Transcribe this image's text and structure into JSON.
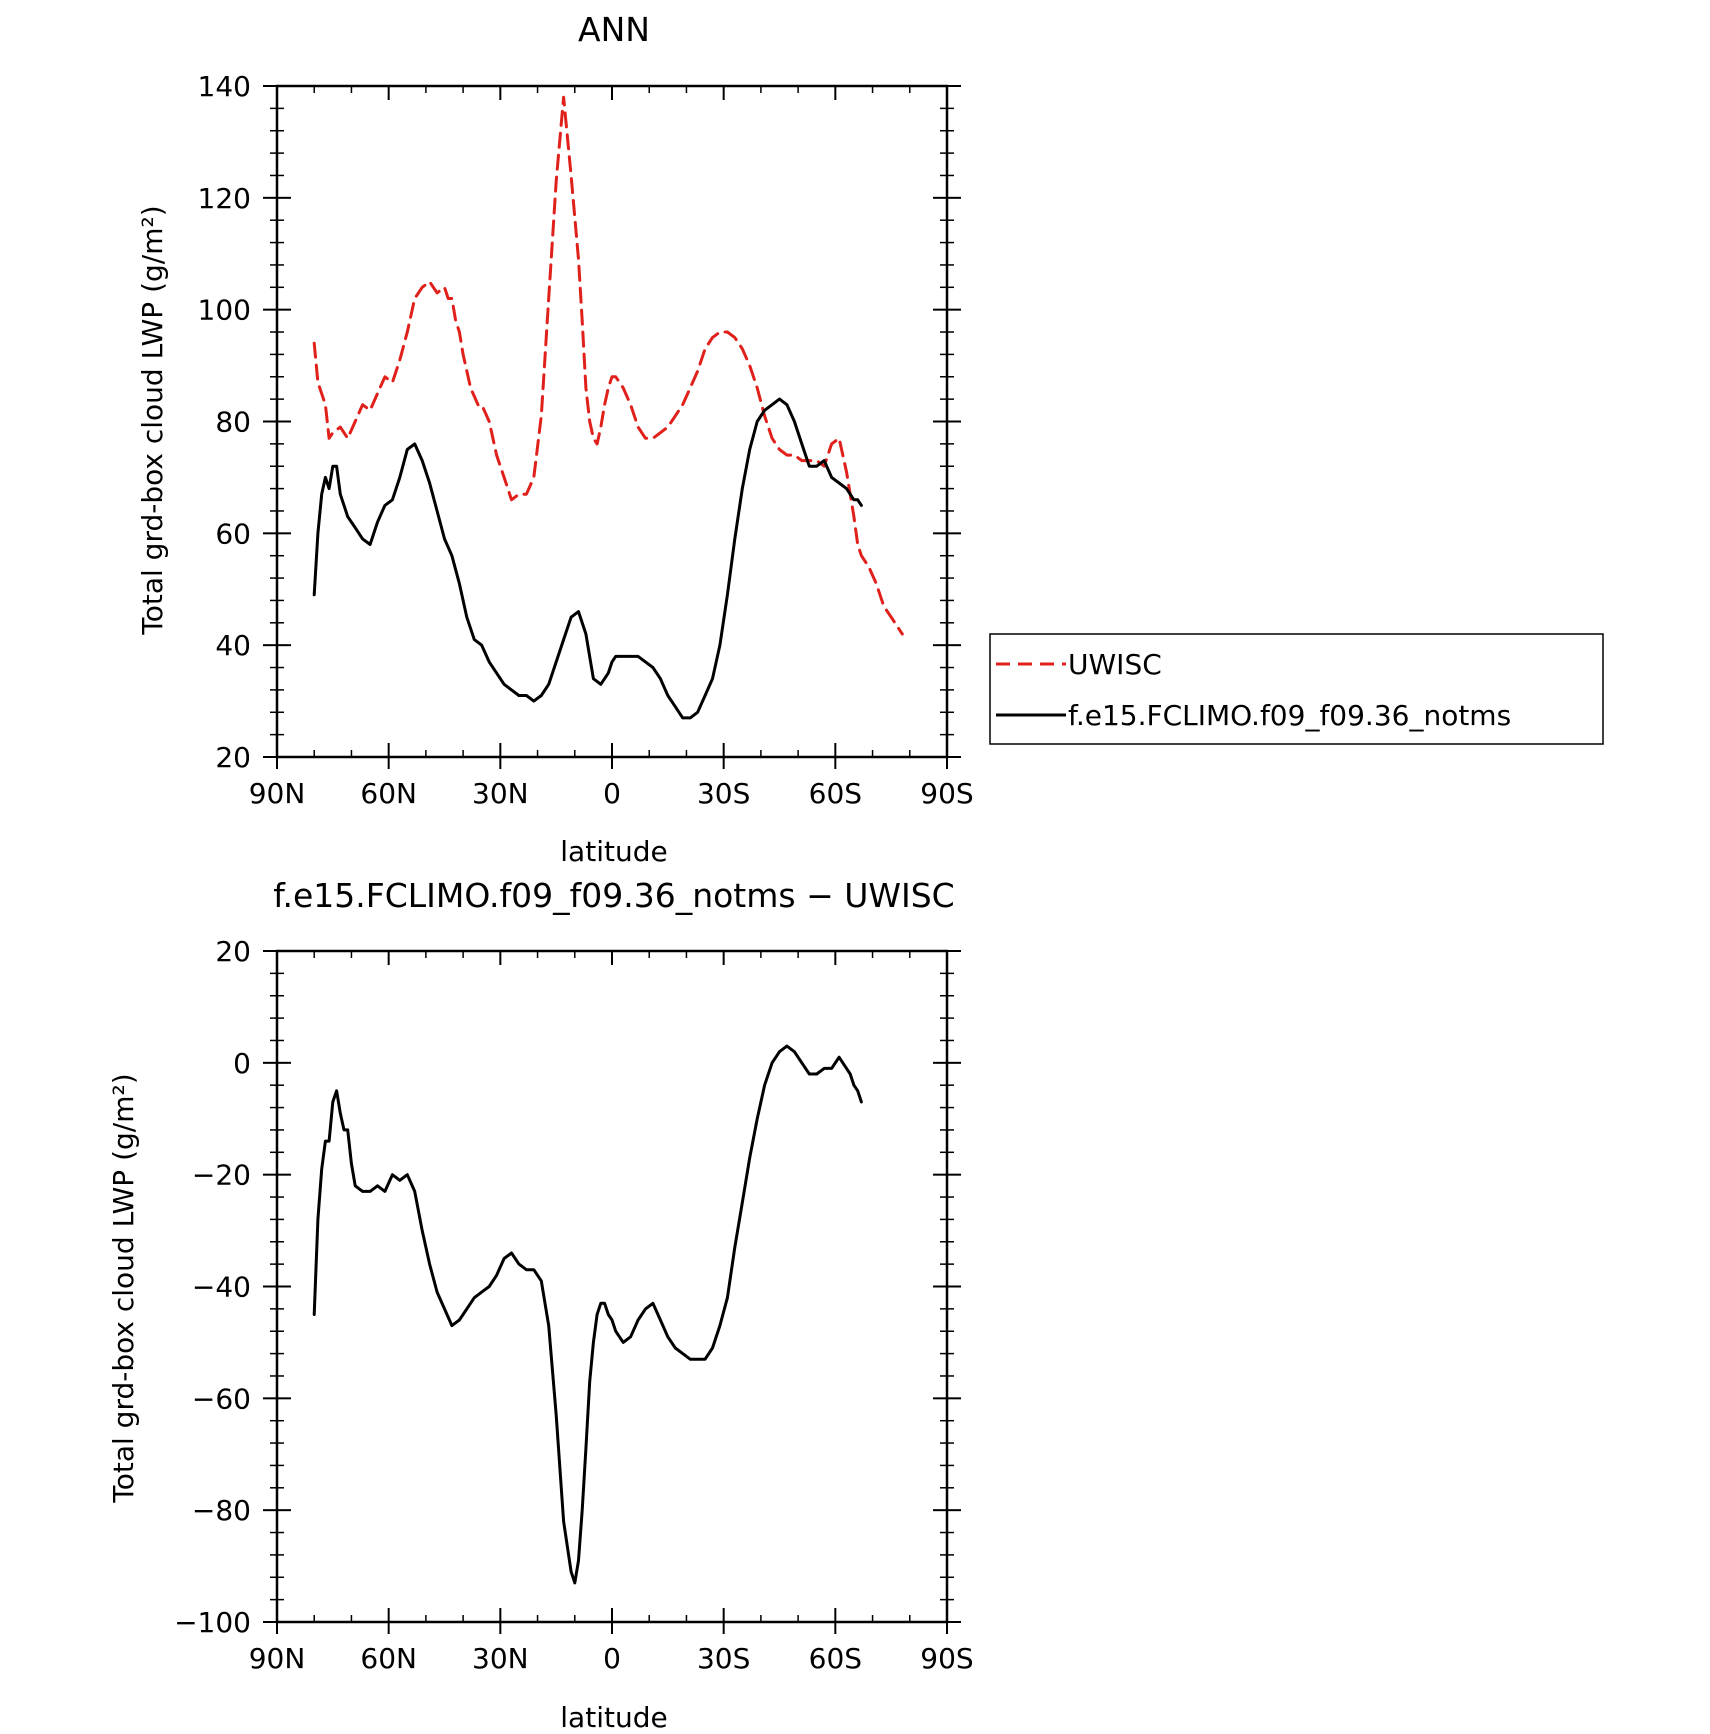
{
  "chart_data": [
    {
      "type": "line",
      "title": "ANN",
      "xlabel": "latitude",
      "ylabel": "Total grd-box cloud LWP (g/m²)",
      "xlim": [
        90,
        -90
      ],
      "ylim": [
        20,
        140
      ],
      "xticks": [
        90,
        60,
        30,
        0,
        -30,
        -60,
        -90
      ],
      "xtick_labels": [
        "90N",
        "60N",
        "30N",
        "0",
        "30S",
        "60S",
        "90S"
      ],
      "yticks": [
        20,
        40,
        60,
        80,
        100,
        120,
        140
      ],
      "ytick_labels": [
        "20",
        "40",
        "60",
        "80",
        "100",
        "120",
        "140"
      ],
      "grid": false,
      "legend_position": "right",
      "series": [
        {
          "name": "UWISC",
          "color": "#e0201b",
          "dash": "dashed",
          "x": [
            80,
            79,
            77,
            76,
            75,
            73,
            71,
            69,
            67,
            65,
            63,
            61,
            59,
            57,
            55,
            53,
            51,
            49,
            47,
            45,
            44,
            43,
            42,
            41,
            40,
            38,
            36,
            35,
            33,
            31,
            29,
            27,
            25,
            23,
            21,
            19,
            17,
            15,
            13,
            11,
            9,
            8,
            7,
            6,
            5,
            4,
            3,
            2,
            1,
            0,
            -1,
            -3,
            -5,
            -7,
            -9,
            -11,
            -13,
            -15,
            -17,
            -19,
            -21,
            -23,
            -25,
            -27,
            -29,
            -31,
            -33,
            -35,
            -37,
            -39,
            -41,
            -43,
            -45,
            -47,
            -49,
            -51,
            -53,
            -55,
            -57,
            -59,
            -61,
            -63,
            -65,
            -66,
            -67,
            -69,
            -71,
            -72,
            -73,
            -74,
            -75,
            -76,
            -77,
            -78
          ],
          "y": [
            94,
            87,
            83,
            77,
            78,
            79,
            77,
            80,
            83,
            82,
            85,
            88,
            87,
            91,
            96,
            102,
            104,
            105,
            103,
            104,
            102,
            102,
            98,
            96,
            92,
            86,
            83,
            83,
            80,
            74,
            70,
            66,
            67,
            67,
            70,
            81,
            102,
            123,
            138,
            124,
            109,
            98,
            86,
            80,
            77,
            76,
            79,
            83,
            86,
            88,
            88,
            86,
            83,
            79,
            77,
            77,
            78,
            79,
            81,
            83,
            86,
            89,
            93,
            95,
            96,
            96,
            95,
            93,
            90,
            86,
            81,
            77,
            75,
            74,
            74,
            73,
            73,
            73,
            72,
            76,
            77,
            71,
            63,
            58,
            56,
            54,
            51,
            49,
            47,
            46,
            45,
            44,
            43,
            42
          ]
        },
        {
          "name": "f.e15.FCLIMO.f09_f09.36_notms",
          "color": "#000000",
          "dash": "solid",
          "x": [
            80,
            79,
            78,
            77,
            76,
            75,
            74,
            73,
            71,
            69,
            67,
            65,
            63,
            61,
            59,
            57,
            55,
            53,
            51,
            49,
            47,
            45,
            43,
            41,
            39,
            37,
            35,
            33,
            31,
            29,
            27,
            25,
            23,
            21,
            19,
            17,
            15,
            13,
            11,
            9,
            7,
            5,
            3,
            1,
            0,
            -1,
            -3,
            -5,
            -7,
            -9,
            -11,
            -13,
            -15,
            -17,
            -19,
            -21,
            -23,
            -25,
            -27,
            -29,
            -31,
            -33,
            -35,
            -37,
            -39,
            -41,
            -43,
            -45,
            -47,
            -49,
            -51,
            -53,
            -55,
            -57,
            -59,
            -61,
            -63,
            -64,
            -65,
            -66,
            -67
          ],
          "y": [
            49,
            60,
            67,
            70,
            68,
            72,
            72,
            67,
            63,
            61,
            59,
            58,
            62,
            65,
            66,
            70,
            75,
            76,
            73,
            69,
            64,
            59,
            56,
            51,
            45,
            41,
            40,
            37,
            35,
            33,
            32,
            31,
            31,
            30,
            31,
            33,
            37,
            41,
            45,
            46,
            42,
            34,
            33,
            35,
            37,
            38,
            38,
            38,
            38,
            37,
            36,
            34,
            31,
            29,
            27,
            27,
            28,
            31,
            34,
            40,
            49,
            59,
            68,
            75,
            80,
            82,
            83,
            84,
            83,
            80,
            76,
            72,
            72,
            73,
            70,
            69,
            68,
            67,
            66,
            66,
            65
          ]
        }
      ]
    },
    {
      "type": "line",
      "title": "f.e15.FCLIMO.f09_f09.36_notms − UWISC",
      "xlabel": "latitude",
      "ylabel": "Total grd-box cloud LWP (g/m²)",
      "xlim": [
        90,
        -90
      ],
      "ylim": [
        -100,
        20
      ],
      "xticks": [
        90,
        60,
        30,
        0,
        -30,
        -60,
        -90
      ],
      "xtick_labels": [
        "90N",
        "60N",
        "30N",
        "0",
        "30S",
        "60S",
        "90S"
      ],
      "yticks": [
        -100,
        -80,
        -60,
        -40,
        -20,
        0,
        20
      ],
      "ytick_labels": [
        "−100",
        "−80",
        "−60",
        "−40",
        "−20",
        "0",
        "20"
      ],
      "grid": false,
      "series": [
        {
          "color": "#000000",
          "dash": "solid",
          "x": [
            80,
            79,
            78,
            77,
            76,
            75,
            74,
            73,
            72,
            71,
            70,
            69,
            67,
            65,
            63,
            61,
            59,
            57,
            55,
            53,
            51,
            49,
            47,
            45,
            43,
            41,
            39,
            37,
            35,
            33,
            31,
            29,
            27,
            25,
            23,
            21,
            19,
            17,
            15,
            13,
            11,
            10,
            9,
            8,
            7,
            6,
            5,
            4,
            3,
            2,
            1,
            0,
            -1,
            -3,
            -5,
            -7,
            -9,
            -11,
            -13,
            -15,
            -17,
            -19,
            -21,
            -23,
            -25,
            -27,
            -29,
            -31,
            -33,
            -35,
            -37,
            -39,
            -41,
            -43,
            -45,
            -47,
            -49,
            -51,
            -53,
            -55,
            -57,
            -59,
            -61,
            -63,
            -64,
            -65,
            -66,
            -67
          ],
          "y": [
            -45,
            -28,
            -19,
            -14,
            -14,
            -7,
            -5,
            -9,
            -12,
            -12,
            -18,
            -22,
            -23,
            -23,
            -22,
            -23,
            -20,
            -21,
            -20,
            -23,
            -30,
            -36,
            -41,
            -44,
            -47,
            -46,
            -44,
            -42,
            -41,
            -40,
            -38,
            -35,
            -34,
            -36,
            -37,
            -37,
            -39,
            -47,
            -63,
            -82,
            -91,
            -93,
            -89,
            -80,
            -69,
            -57,
            -50,
            -45,
            -43,
            -43,
            -45,
            -46,
            -48,
            -50,
            -49,
            -46,
            -44,
            -43,
            -46,
            -49,
            -51,
            -52,
            -53,
            -53,
            -53,
            -51,
            -47,
            -42,
            -33,
            -25,
            -17,
            -10,
            -4,
            0,
            2,
            3,
            2,
            0,
            -2,
            -2,
            -1,
            -1,
            1,
            -1,
            -2,
            -4,
            -5,
            -7
          ]
        }
      ]
    }
  ],
  "legend": {
    "items": [
      {
        "label": "UWISC"
      },
      {
        "label": "f.e15.FCLIMO.f09_f09.36_notms"
      }
    ]
  }
}
